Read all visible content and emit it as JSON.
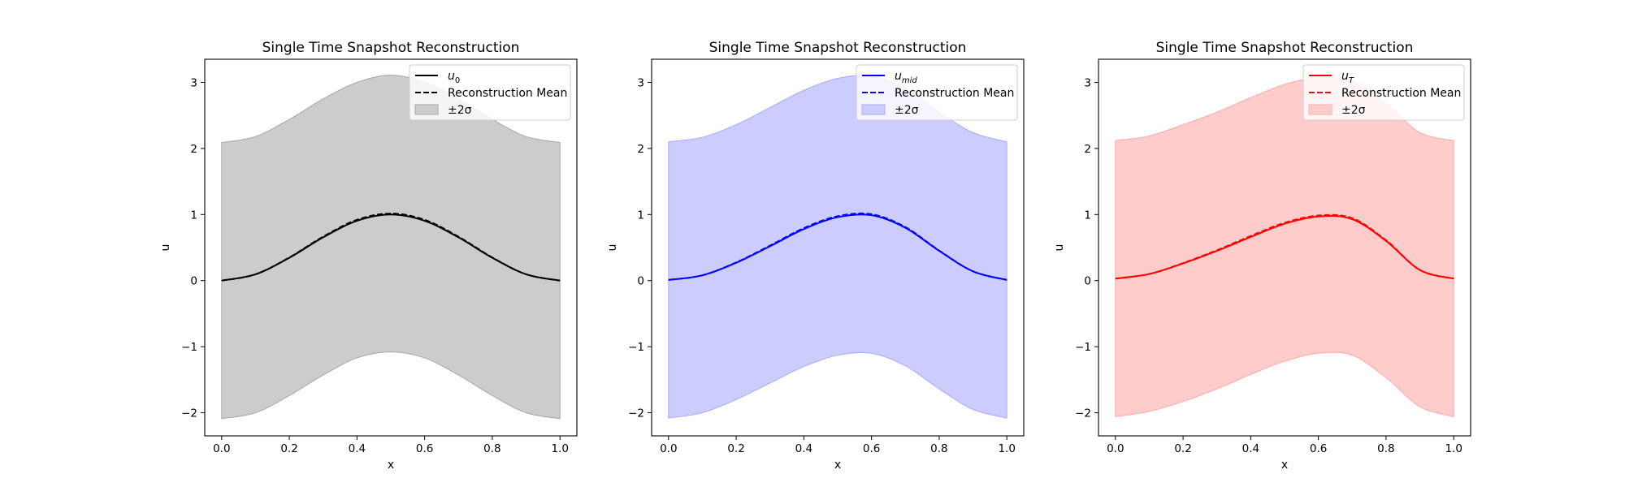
{
  "panel_colors": {
    "black": {
      "line": "#000000",
      "fill": "#cccccc",
      "fill_edge": "#a8a8a8"
    },
    "blue": {
      "line": "#0000ff",
      "fill": "#ccccff",
      "fill_edge": "#aaaaff"
    },
    "red": {
      "line": "#ff0000",
      "fill": "#ffcccc",
      "fill_edge": "#ffaaaa"
    }
  },
  "chart_data": [
    {
      "type": "line",
      "title": "Single Time Snapshot Reconstruction",
      "xlabel": "x",
      "ylabel": "u",
      "xlim": [
        -0.05,
        1.05
      ],
      "ylim": [
        -2.35,
        3.35
      ],
      "xticks": [
        0.0,
        0.2,
        0.4,
        0.6,
        0.8,
        1.0
      ],
      "xtick_labels": [
        "0.0",
        "0.2",
        "0.4",
        "0.6",
        "0.8",
        "1.0"
      ],
      "yticks": [
        -2,
        -1,
        0,
        1,
        2,
        3
      ],
      "ytick_labels": [
        "−2",
        "−1",
        "0",
        "1",
        "2",
        "3"
      ],
      "color": "black",
      "legend_position": "top-right",
      "legend": [
        {
          "kind": "solid",
          "base": "u",
          "sub": "0"
        },
        {
          "kind": "dashed",
          "text": "Reconstruction Mean"
        },
        {
          "kind": "band",
          "text": "±2σ"
        }
      ],
      "x": [
        0.0,
        0.1,
        0.2,
        0.3,
        0.4,
        0.5,
        0.6,
        0.7,
        0.8,
        0.9,
        1.0
      ],
      "series": [
        {
          "name": "u₀",
          "style": "solid",
          "values": [
            0.0,
            0.095,
            0.345,
            0.655,
            0.905,
            1.0,
            0.905,
            0.655,
            0.345,
            0.095,
            0.0
          ]
        },
        {
          "name": "Reconstruction Mean",
          "style": "dashed",
          "values": [
            0.0,
            0.095,
            0.35,
            0.665,
            0.92,
            1.015,
            0.92,
            0.665,
            0.35,
            0.095,
            0.0
          ]
        }
      ],
      "band": {
        "name": "±2σ",
        "lower": [
          -2.09,
          -2.0,
          -1.74,
          -1.43,
          -1.17,
          -1.08,
          -1.17,
          -1.43,
          -1.74,
          -2.0,
          -2.09
        ],
        "upper": [
          2.09,
          2.18,
          2.44,
          2.75,
          3.0,
          3.11,
          3.0,
          2.75,
          2.44,
          2.18,
          2.09
        ]
      }
    },
    {
      "type": "line",
      "title": "Single Time Snapshot Reconstruction",
      "xlabel": "x",
      "ylabel": "u",
      "xlim": [
        -0.05,
        1.05
      ],
      "ylim": [
        -2.35,
        3.35
      ],
      "xticks": [
        0.0,
        0.2,
        0.4,
        0.6,
        0.8,
        1.0
      ],
      "xtick_labels": [
        "0.0",
        "0.2",
        "0.4",
        "0.6",
        "0.8",
        "1.0"
      ],
      "yticks": [
        -2,
        -1,
        0,
        1,
        2,
        3
      ],
      "ytick_labels": [
        "−2",
        "−1",
        "0",
        "1",
        "2",
        "3"
      ],
      "color": "blue",
      "legend_position": "top-right",
      "legend": [
        {
          "kind": "solid",
          "base": "u",
          "sub": "mid"
        },
        {
          "kind": "dashed",
          "text": "Reconstruction Mean"
        },
        {
          "kind": "band",
          "text": "±2σ"
        }
      ],
      "x": [
        0.0,
        0.1,
        0.2,
        0.3,
        0.4,
        0.5,
        0.6,
        0.7,
        0.8,
        0.9,
        1.0
      ],
      "series": [
        {
          "name": "u_mid",
          "style": "solid",
          "values": [
            0.01,
            0.08,
            0.27,
            0.52,
            0.78,
            0.96,
            0.99,
            0.8,
            0.45,
            0.14,
            0.01
          ]
        },
        {
          "name": "Reconstruction Mean",
          "style": "dashed",
          "values": [
            0.01,
            0.08,
            0.275,
            0.53,
            0.795,
            0.975,
            1.005,
            0.81,
            0.455,
            0.14,
            0.01
          ]
        }
      ],
      "band": {
        "name": "±2σ",
        "lower": [
          -2.08,
          -2.0,
          -1.8,
          -1.55,
          -1.3,
          -1.13,
          -1.1,
          -1.29,
          -1.64,
          -1.95,
          -2.08
        ],
        "upper": [
          2.1,
          2.17,
          2.36,
          2.62,
          2.88,
          3.06,
          3.1,
          2.91,
          2.55,
          2.24,
          2.1
        ]
      }
    },
    {
      "type": "line",
      "title": "Single Time Snapshot Reconstruction",
      "xlabel": "x",
      "ylabel": "u",
      "xlim": [
        -0.05,
        1.05
      ],
      "ylim": [
        -2.35,
        3.35
      ],
      "xticks": [
        0.0,
        0.2,
        0.4,
        0.6,
        0.8,
        1.0
      ],
      "xtick_labels": [
        "0.0",
        "0.2",
        "0.4",
        "0.6",
        "0.8",
        "1.0"
      ],
      "yticks": [
        -2,
        -1,
        0,
        1,
        2,
        3
      ],
      "ytick_labels": [
        "−2",
        "−1",
        "0",
        "1",
        "2",
        "3"
      ],
      "color": "red",
      "legend_position": "top-right",
      "legend": [
        {
          "kind": "solid",
          "base": "u",
          "sub": "T"
        },
        {
          "kind": "dashed",
          "text": "Reconstruction Mean"
        },
        {
          "kind": "band",
          "text": "±2σ"
        }
      ],
      "x": [
        0.0,
        0.1,
        0.2,
        0.3,
        0.4,
        0.5,
        0.6,
        0.7,
        0.8,
        0.9,
        1.0
      ],
      "series": [
        {
          "name": "u_T",
          "style": "solid",
          "values": [
            0.03,
            0.1,
            0.26,
            0.45,
            0.66,
            0.86,
            0.97,
            0.93,
            0.6,
            0.16,
            0.03
          ]
        },
        {
          "name": "Reconstruction Mean",
          "style": "dashed",
          "values": [
            0.03,
            0.1,
            0.265,
            0.46,
            0.675,
            0.875,
            0.985,
            0.945,
            0.61,
            0.16,
            0.03
          ]
        }
      ],
      "band": {
        "name": "±2σ",
        "lower": [
          -2.06,
          -1.98,
          -1.83,
          -1.64,
          -1.42,
          -1.22,
          -1.1,
          -1.13,
          -1.47,
          -1.91,
          -2.06
        ],
        "upper": [
          2.12,
          2.19,
          2.36,
          2.55,
          2.77,
          2.97,
          3.07,
          3.03,
          2.68,
          2.24,
          2.12
        ]
      }
    }
  ]
}
